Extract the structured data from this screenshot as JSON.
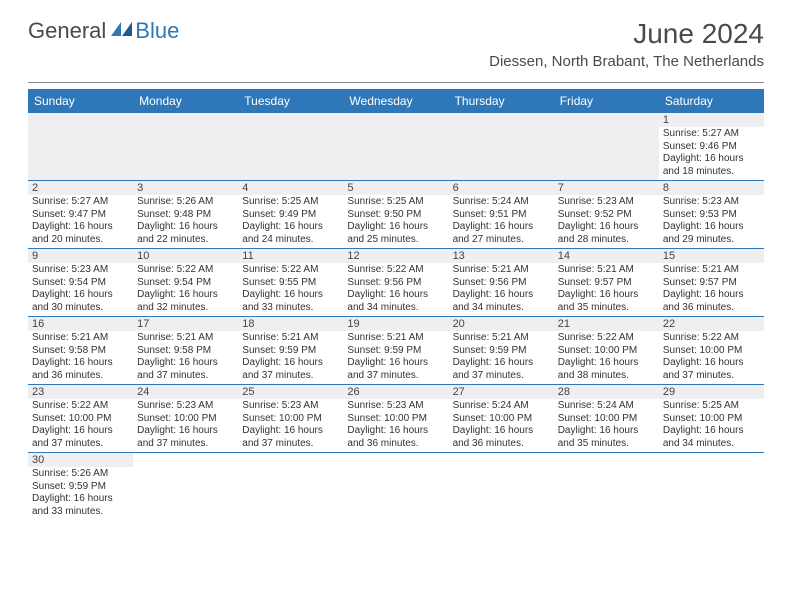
{
  "header": {
    "logo_main": "General",
    "logo_blue": "Blue",
    "month_title": "June 2024",
    "location": "Diessen, North Brabant, The Netherlands"
  },
  "colors": {
    "header_bar": "#2e77b8",
    "header_text": "#ffffff",
    "blank_bg": "#efefef",
    "divider": "#888888",
    "text": "#333333",
    "logo_gray": "#4a4a4a",
    "logo_blue": "#2e77b8"
  },
  "day_names": [
    "Sunday",
    "Monday",
    "Tuesday",
    "Wednesday",
    "Thursday",
    "Friday",
    "Saturday"
  ],
  "weeks": [
    [
      null,
      null,
      null,
      null,
      null,
      null,
      {
        "n": "1",
        "sunrise": "Sunrise: 5:27 AM",
        "sunset": "Sunset: 9:46 PM",
        "d1": "Daylight: 16 hours",
        "d2": "and 18 minutes."
      }
    ],
    [
      {
        "n": "2",
        "sunrise": "Sunrise: 5:27 AM",
        "sunset": "Sunset: 9:47 PM",
        "d1": "Daylight: 16 hours",
        "d2": "and 20 minutes."
      },
      {
        "n": "3",
        "sunrise": "Sunrise: 5:26 AM",
        "sunset": "Sunset: 9:48 PM",
        "d1": "Daylight: 16 hours",
        "d2": "and 22 minutes."
      },
      {
        "n": "4",
        "sunrise": "Sunrise: 5:25 AM",
        "sunset": "Sunset: 9:49 PM",
        "d1": "Daylight: 16 hours",
        "d2": "and 24 minutes."
      },
      {
        "n": "5",
        "sunrise": "Sunrise: 5:25 AM",
        "sunset": "Sunset: 9:50 PM",
        "d1": "Daylight: 16 hours",
        "d2": "and 25 minutes."
      },
      {
        "n": "6",
        "sunrise": "Sunrise: 5:24 AM",
        "sunset": "Sunset: 9:51 PM",
        "d1": "Daylight: 16 hours",
        "d2": "and 27 minutes."
      },
      {
        "n": "7",
        "sunrise": "Sunrise: 5:23 AM",
        "sunset": "Sunset: 9:52 PM",
        "d1": "Daylight: 16 hours",
        "d2": "and 28 minutes."
      },
      {
        "n": "8",
        "sunrise": "Sunrise: 5:23 AM",
        "sunset": "Sunset: 9:53 PM",
        "d1": "Daylight: 16 hours",
        "d2": "and 29 minutes."
      }
    ],
    [
      {
        "n": "9",
        "sunrise": "Sunrise: 5:23 AM",
        "sunset": "Sunset: 9:54 PM",
        "d1": "Daylight: 16 hours",
        "d2": "and 30 minutes."
      },
      {
        "n": "10",
        "sunrise": "Sunrise: 5:22 AM",
        "sunset": "Sunset: 9:54 PM",
        "d1": "Daylight: 16 hours",
        "d2": "and 32 minutes."
      },
      {
        "n": "11",
        "sunrise": "Sunrise: 5:22 AM",
        "sunset": "Sunset: 9:55 PM",
        "d1": "Daylight: 16 hours",
        "d2": "and 33 minutes."
      },
      {
        "n": "12",
        "sunrise": "Sunrise: 5:22 AM",
        "sunset": "Sunset: 9:56 PM",
        "d1": "Daylight: 16 hours",
        "d2": "and 34 minutes."
      },
      {
        "n": "13",
        "sunrise": "Sunrise: 5:21 AM",
        "sunset": "Sunset: 9:56 PM",
        "d1": "Daylight: 16 hours",
        "d2": "and 34 minutes."
      },
      {
        "n": "14",
        "sunrise": "Sunrise: 5:21 AM",
        "sunset": "Sunset: 9:57 PM",
        "d1": "Daylight: 16 hours",
        "d2": "and 35 minutes."
      },
      {
        "n": "15",
        "sunrise": "Sunrise: 5:21 AM",
        "sunset": "Sunset: 9:57 PM",
        "d1": "Daylight: 16 hours",
        "d2": "and 36 minutes."
      }
    ],
    [
      {
        "n": "16",
        "sunrise": "Sunrise: 5:21 AM",
        "sunset": "Sunset: 9:58 PM",
        "d1": "Daylight: 16 hours",
        "d2": "and 36 minutes."
      },
      {
        "n": "17",
        "sunrise": "Sunrise: 5:21 AM",
        "sunset": "Sunset: 9:58 PM",
        "d1": "Daylight: 16 hours",
        "d2": "and 37 minutes."
      },
      {
        "n": "18",
        "sunrise": "Sunrise: 5:21 AM",
        "sunset": "Sunset: 9:59 PM",
        "d1": "Daylight: 16 hours",
        "d2": "and 37 minutes."
      },
      {
        "n": "19",
        "sunrise": "Sunrise: 5:21 AM",
        "sunset": "Sunset: 9:59 PM",
        "d1": "Daylight: 16 hours",
        "d2": "and 37 minutes."
      },
      {
        "n": "20",
        "sunrise": "Sunrise: 5:21 AM",
        "sunset": "Sunset: 9:59 PM",
        "d1": "Daylight: 16 hours",
        "d2": "and 37 minutes."
      },
      {
        "n": "21",
        "sunrise": "Sunrise: 5:22 AM",
        "sunset": "Sunset: 10:00 PM",
        "d1": "Daylight: 16 hours",
        "d2": "and 38 minutes."
      },
      {
        "n": "22",
        "sunrise": "Sunrise: 5:22 AM",
        "sunset": "Sunset: 10:00 PM",
        "d1": "Daylight: 16 hours",
        "d2": "and 37 minutes."
      }
    ],
    [
      {
        "n": "23",
        "sunrise": "Sunrise: 5:22 AM",
        "sunset": "Sunset: 10:00 PM",
        "d1": "Daylight: 16 hours",
        "d2": "and 37 minutes."
      },
      {
        "n": "24",
        "sunrise": "Sunrise: 5:23 AM",
        "sunset": "Sunset: 10:00 PM",
        "d1": "Daylight: 16 hours",
        "d2": "and 37 minutes."
      },
      {
        "n": "25",
        "sunrise": "Sunrise: 5:23 AM",
        "sunset": "Sunset: 10:00 PM",
        "d1": "Daylight: 16 hours",
        "d2": "and 37 minutes."
      },
      {
        "n": "26",
        "sunrise": "Sunrise: 5:23 AM",
        "sunset": "Sunset: 10:00 PM",
        "d1": "Daylight: 16 hours",
        "d2": "and 36 minutes."
      },
      {
        "n": "27",
        "sunrise": "Sunrise: 5:24 AM",
        "sunset": "Sunset: 10:00 PM",
        "d1": "Daylight: 16 hours",
        "d2": "and 36 minutes."
      },
      {
        "n": "28",
        "sunrise": "Sunrise: 5:24 AM",
        "sunset": "Sunset: 10:00 PM",
        "d1": "Daylight: 16 hours",
        "d2": "and 35 minutes."
      },
      {
        "n": "29",
        "sunrise": "Sunrise: 5:25 AM",
        "sunset": "Sunset: 10:00 PM",
        "d1": "Daylight: 16 hours",
        "d2": "and 34 minutes."
      }
    ],
    [
      {
        "n": "30",
        "sunrise": "Sunrise: 5:26 AM",
        "sunset": "Sunset: 9:59 PM",
        "d1": "Daylight: 16 hours",
        "d2": "and 33 minutes."
      },
      null,
      null,
      null,
      null,
      null,
      null
    ]
  ]
}
